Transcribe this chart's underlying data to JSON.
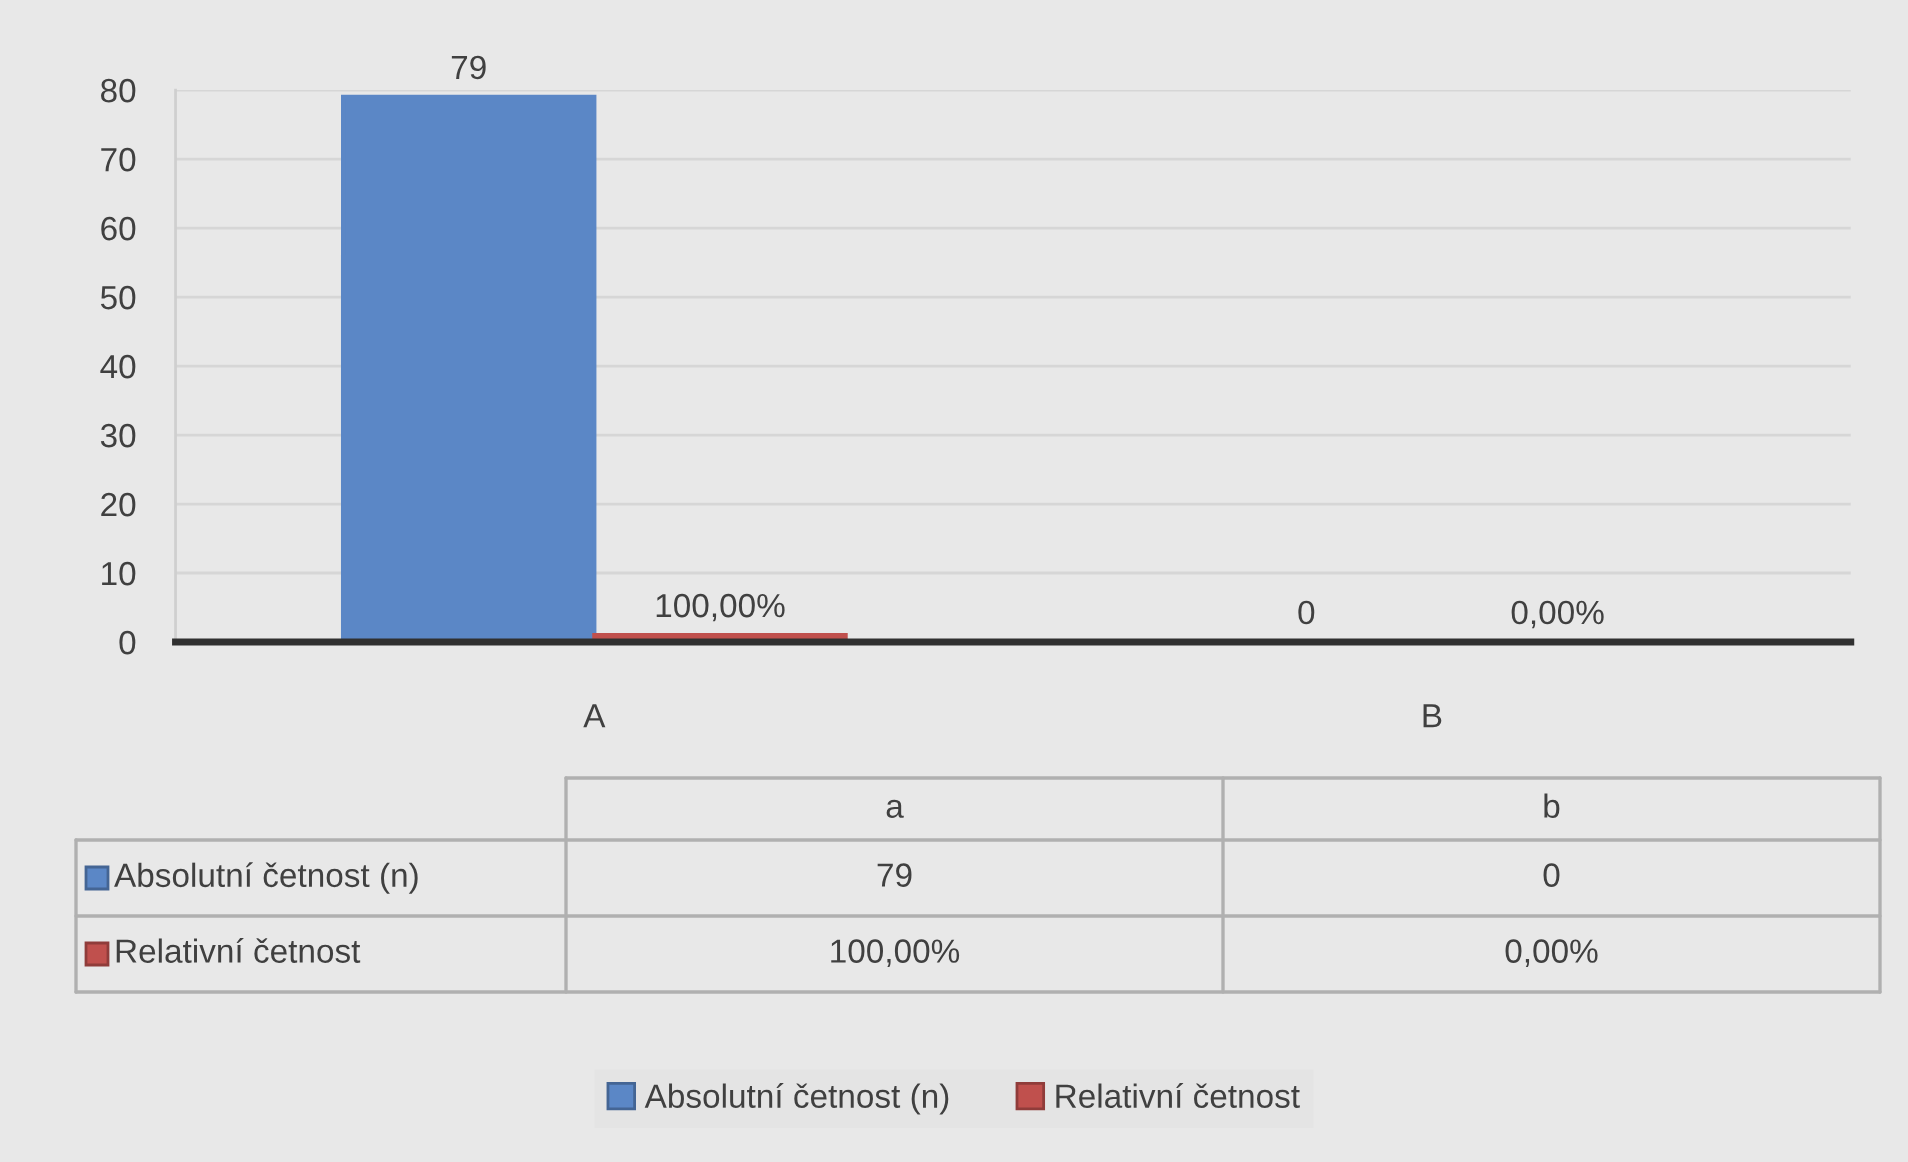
{
  "chart_data": {
    "type": "bar",
    "categories": [
      "A",
      "B"
    ],
    "series": [
      {
        "name": "Absolutní četnost (n)",
        "color": "#5b87c6",
        "values": [
          79,
          0
        ],
        "value_labels": [
          "79",
          "0"
        ]
      },
      {
        "name": "Relativní četnost",
        "color": "#c0504d",
        "values": [
          1,
          0
        ],
        "value_labels": [
          "100,00%",
          "0,00%"
        ]
      }
    ],
    "ylim": [
      0,
      80
    ],
    "yticks": [
      0,
      10,
      20,
      30,
      40,
      50,
      60,
      70,
      80
    ],
    "grid": "y",
    "legend": "bottom",
    "annotations": [
      "a",
      "b"
    ]
  }
}
